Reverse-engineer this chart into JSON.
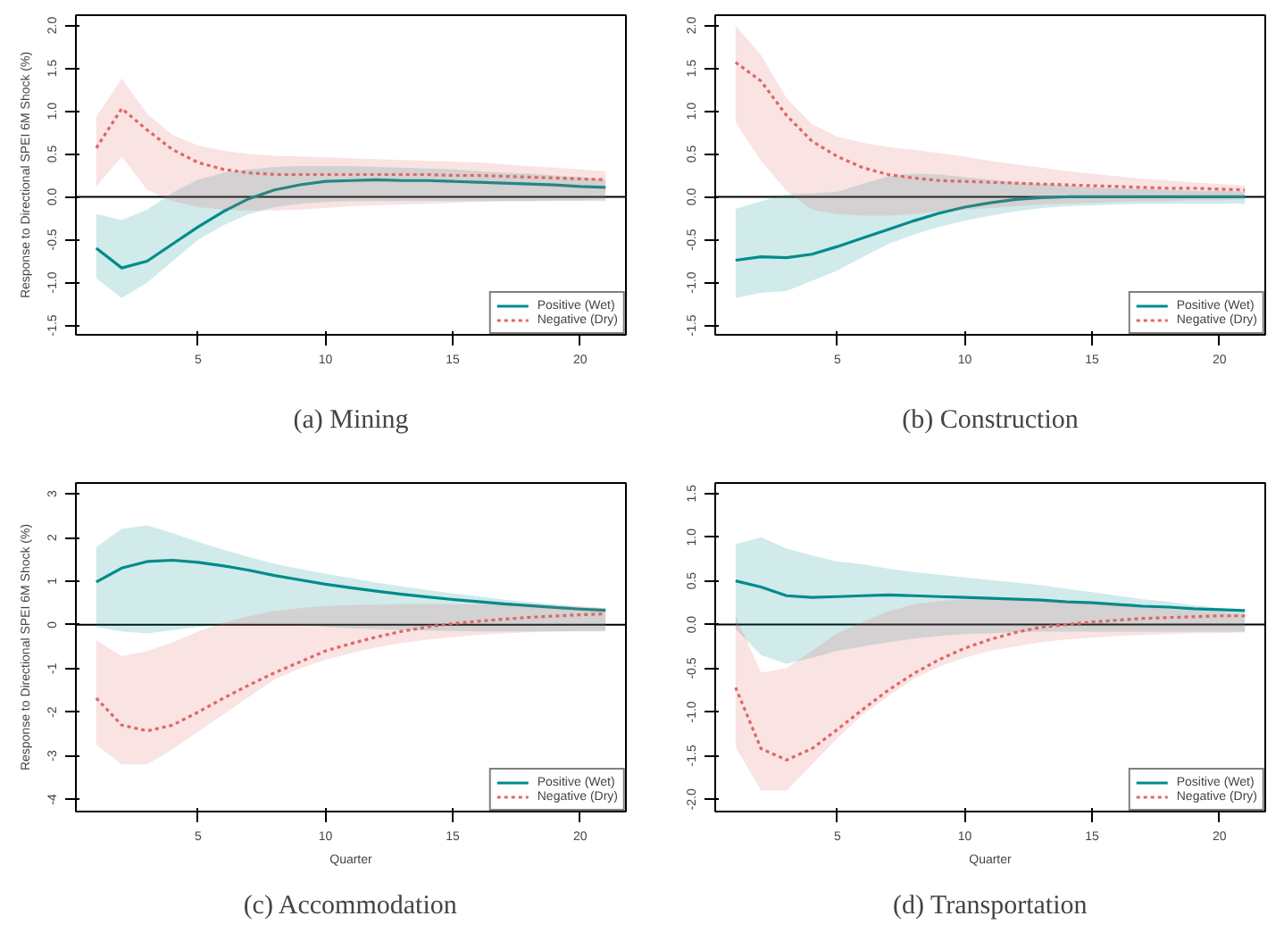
{
  "chart_data": [
    {
      "type": "line",
      "title": "(a) Mining",
      "ylabel": "Response to Directional SPEI 6M Shock (%)",
      "x": [
        1,
        2,
        3,
        4,
        5,
        6,
        7,
        8,
        9,
        10,
        11,
        12,
        13,
        14,
        15,
        16,
        17,
        18,
        19,
        20,
        21
      ],
      "xlim": [
        0.2,
        21.8
      ],
      "xticks": [
        5,
        10,
        15,
        20
      ],
      "ylim": [
        -1.61,
        2.12
      ],
      "yticks": [
        -1.5,
        {
          "value": -1.0,
          "label": "-1.0"
        },
        -0.5,
        {
          "value": 0.0,
          "label": "0.0"
        },
        0.5,
        {
          "value": 1.0,
          "label": "1.0"
        },
        1.5,
        {
          "value": 2.0,
          "label": "2.0"
        }
      ],
      "grid": false,
      "legend": "bottom right",
      "ref_lines": [
        {
          "axis": "y",
          "value": 0,
          "color": "#000000"
        }
      ],
      "series": [
        {
          "name": "Positive (Wet)",
          "color": "#008b8b",
          "line_style": "solid",
          "values": [
            -0.6,
            -0.83,
            -0.75,
            -0.55,
            -0.35,
            -0.17,
            -0.02,
            0.08,
            0.14,
            0.18,
            0.19,
            0.2,
            0.19,
            0.19,
            0.18,
            0.17,
            0.16,
            0.15,
            0.14,
            0.12,
            0.11
          ],
          "lower": [
            -0.95,
            -1.18,
            -1.0,
            -0.75,
            -0.5,
            -0.33,
            -0.2,
            -0.12,
            -0.08,
            -0.06,
            -0.05,
            -0.05,
            -0.05,
            -0.05,
            -0.05,
            -0.05,
            -0.05,
            -0.05,
            -0.05,
            -0.05,
            -0.05
          ],
          "upper": [
            -0.2,
            -0.27,
            -0.15,
            0.05,
            0.2,
            0.28,
            0.32,
            0.35,
            0.36,
            0.36,
            0.36,
            0.35,
            0.34,
            0.33,
            0.32,
            0.3,
            0.28,
            0.27,
            0.25,
            0.23,
            0.2
          ]
        },
        {
          "name": "Negative (Dry)",
          "color": "#e06666",
          "line_style": "dotted",
          "values": [
            0.57,
            1.03,
            0.78,
            0.55,
            0.4,
            0.32,
            0.28,
            0.26,
            0.26,
            0.26,
            0.26,
            0.26,
            0.26,
            0.26,
            0.25,
            0.25,
            0.24,
            0.23,
            0.22,
            0.21,
            0.2
          ],
          "lower": [
            0.12,
            0.47,
            0.08,
            -0.05,
            -0.12,
            -0.15,
            -0.16,
            -0.16,
            -0.15,
            -0.13,
            -0.11,
            -0.1,
            -0.09,
            -0.08,
            -0.07,
            -0.06,
            -0.05,
            -0.05,
            -0.04,
            -0.04,
            -0.03
          ],
          "upper": [
            0.93,
            1.38,
            0.97,
            0.72,
            0.6,
            0.54,
            0.5,
            0.48,
            0.47,
            0.46,
            0.45,
            0.44,
            0.43,
            0.42,
            0.41,
            0.4,
            0.38,
            0.36,
            0.34,
            0.32,
            0.3
          ]
        }
      ]
    },
    {
      "type": "line",
      "title": "(b) Construction",
      "x": [
        1,
        2,
        3,
        4,
        5,
        6,
        7,
        8,
        9,
        10,
        11,
        12,
        13,
        14,
        15,
        16,
        17,
        18,
        19,
        20,
        21
      ],
      "xlim": [
        0.2,
        21.8
      ],
      "xticks": [
        5,
        10,
        15,
        20
      ],
      "ylim": [
        -1.61,
        2.12
      ],
      "yticks": [
        -1.5,
        {
          "value": -1.0,
          "label": "-1.0"
        },
        -0.5,
        {
          "value": 0.0,
          "label": "0.0"
        },
        0.5,
        {
          "value": 1.0,
          "label": "1.0"
        },
        1.5,
        {
          "value": 2.0,
          "label": "2.0"
        }
      ],
      "grid": false,
      "legend": "bottom right",
      "ref_lines": [
        {
          "axis": "y",
          "value": 0,
          "color": "#000000"
        }
      ],
      "series": [
        {
          "name": "Positive (Wet)",
          "color": "#008b8b",
          "line_style": "solid",
          "values": [
            -0.74,
            -0.7,
            -0.71,
            -0.67,
            -0.58,
            -0.48,
            -0.38,
            -0.28,
            -0.19,
            -0.12,
            -0.07,
            -0.03,
            -0.01,
            0.0,
            0.0,
            0.0,
            0.0,
            0.0,
            0.0,
            0.0,
            0.0
          ],
          "lower": [
            -1.18,
            -1.12,
            -1.1,
            -0.98,
            -0.86,
            -0.7,
            -0.55,
            -0.44,
            -0.35,
            -0.28,
            -0.22,
            -0.17,
            -0.13,
            -0.11,
            -0.1,
            -0.09,
            -0.08,
            -0.08,
            -0.08,
            -0.08,
            -0.08
          ],
          "upper": [
            -0.14,
            -0.05,
            0.03,
            0.04,
            0.06,
            0.15,
            0.24,
            0.27,
            0.26,
            0.23,
            0.2,
            0.17,
            0.15,
            0.13,
            0.11,
            0.1,
            0.09,
            0.08,
            0.07,
            0.07,
            0.06
          ]
        },
        {
          "name": "Negative (Dry)",
          "color": "#e06666",
          "line_style": "dotted",
          "values": [
            1.57,
            1.35,
            0.95,
            0.65,
            0.47,
            0.34,
            0.26,
            0.22,
            0.19,
            0.18,
            0.17,
            0.16,
            0.15,
            0.14,
            0.13,
            0.12,
            0.11,
            0.1,
            0.1,
            0.09,
            0.08
          ],
          "lower": [
            0.87,
            0.42,
            0.07,
            -0.15,
            -0.2,
            -0.22,
            -0.22,
            -0.2,
            -0.17,
            -0.15,
            -0.13,
            -0.11,
            -0.09,
            -0.08,
            -0.07,
            -0.06,
            -0.05,
            -0.05,
            -0.04,
            -0.04,
            -0.03
          ],
          "upper": [
            2.0,
            1.65,
            1.15,
            0.85,
            0.7,
            0.63,
            0.58,
            0.55,
            0.51,
            0.47,
            0.42,
            0.38,
            0.34,
            0.3,
            0.27,
            0.24,
            0.21,
            0.19,
            0.17,
            0.15,
            0.13
          ]
        }
      ]
    },
    {
      "type": "line",
      "title": "(c) Accommodation",
      "xlabel": "Quarter",
      "ylabel": "Response to Directional SPEI 6M Shock (%)",
      "x": [
        1,
        2,
        3,
        4,
        5,
        6,
        7,
        8,
        9,
        10,
        11,
        12,
        13,
        14,
        15,
        16,
        17,
        18,
        19,
        20,
        21
      ],
      "xlim": [
        0.2,
        21.8
      ],
      "xticks": [
        5,
        10,
        15,
        20
      ],
      "ylim": [
        -4.28,
        3.25
      ],
      "yticks": [
        -4,
        -3,
        -2,
        -1,
        0,
        1,
        2,
        3
      ],
      "grid": false,
      "legend": "bottom right",
      "ref_lines": [
        {
          "axis": "y",
          "value": 0,
          "color": "#000000"
        }
      ],
      "series": [
        {
          "name": "Positive (Wet)",
          "color": "#008b8b",
          "line_style": "solid",
          "values": [
            0.98,
            1.3,
            1.45,
            1.48,
            1.43,
            1.35,
            1.25,
            1.13,
            1.03,
            0.93,
            0.85,
            0.77,
            0.7,
            0.64,
            0.58,
            0.53,
            0.48,
            0.44,
            0.4,
            0.36,
            0.33
          ],
          "lower": [
            -0.05,
            -0.15,
            -0.2,
            -0.12,
            -0.05,
            0.0,
            0.0,
            0.0,
            0.0,
            -0.05,
            -0.08,
            -0.1,
            -0.12,
            -0.13,
            -0.14,
            -0.15,
            -0.15,
            -0.15,
            -0.15,
            -0.15,
            -0.15
          ],
          "upper": [
            1.78,
            2.2,
            2.28,
            2.1,
            1.9,
            1.72,
            1.55,
            1.4,
            1.28,
            1.17,
            1.07,
            0.97,
            0.88,
            0.8,
            0.72,
            0.65,
            0.58,
            0.52,
            0.47,
            0.42,
            0.38
          ]
        },
        {
          "name": "Negative (Dry)",
          "color": "#e06666",
          "line_style": "dotted",
          "values": [
            -1.68,
            -2.3,
            -2.43,
            -2.3,
            -2.0,
            -1.68,
            -1.38,
            -1.1,
            -0.85,
            -0.6,
            -0.43,
            -0.28,
            -0.15,
            -0.05,
            0.03,
            0.08,
            0.13,
            0.17,
            0.2,
            0.23,
            0.25
          ],
          "lower": [
            -2.75,
            -3.2,
            -3.2,
            -2.85,
            -2.45,
            -2.05,
            -1.65,
            -1.25,
            -1.0,
            -0.8,
            -0.65,
            -0.52,
            -0.42,
            -0.34,
            -0.28,
            -0.23,
            -0.2,
            -0.17,
            -0.15,
            -0.14,
            -0.13
          ],
          "upper": [
            -0.35,
            -0.72,
            -0.6,
            -0.4,
            -0.15,
            0.05,
            0.2,
            0.32,
            0.38,
            0.43,
            0.45,
            0.46,
            0.47,
            0.47,
            0.47,
            0.47,
            0.46,
            0.45,
            0.43,
            0.41,
            0.38
          ]
        }
      ]
    },
    {
      "type": "line",
      "title": "(d) Transportation",
      "xlabel": "Quarter",
      "x": [
        1,
        2,
        3,
        4,
        5,
        6,
        7,
        8,
        9,
        10,
        11,
        12,
        13,
        14,
        15,
        16,
        17,
        18,
        19,
        20,
        21
      ],
      "xlim": [
        0.2,
        21.8
      ],
      "xticks": [
        5,
        10,
        15,
        20
      ],
      "ylim": [
        -2.14,
        1.62
      ],
      "yticks": [
        {
          "value": -2.0,
          "label": "-2.0"
        },
        -1.5,
        {
          "value": -1.0,
          "label": "-1.0"
        },
        -0.5,
        {
          "value": 0.0,
          "label": "0.0"
        },
        0.5,
        {
          "value": 1.0,
          "label": "1.0"
        },
        1.5
      ],
      "grid": false,
      "legend": "bottom right",
      "ref_lines": [
        {
          "axis": "y",
          "value": 0,
          "color": "#000000"
        }
      ],
      "series": [
        {
          "name": "Positive (Wet)",
          "color": "#008b8b",
          "line_style": "solid",
          "values": [
            0.5,
            0.43,
            0.33,
            0.31,
            0.32,
            0.33,
            0.34,
            0.33,
            0.32,
            0.31,
            0.3,
            0.29,
            0.28,
            0.26,
            0.25,
            0.23,
            0.21,
            0.2,
            0.18,
            0.17,
            0.16
          ],
          "lower": [
            -0.05,
            -0.35,
            -0.45,
            -0.38,
            -0.3,
            -0.25,
            -0.2,
            -0.16,
            -0.13,
            -0.11,
            -0.1,
            -0.09,
            -0.08,
            -0.08,
            -0.08,
            -0.08,
            -0.08,
            -0.08,
            -0.08,
            -0.08,
            -0.08
          ],
          "upper": [
            0.92,
            1.0,
            0.87,
            0.79,
            0.72,
            0.69,
            0.64,
            0.6,
            0.57,
            0.54,
            0.51,
            0.48,
            0.45,
            0.41,
            0.37,
            0.33,
            0.29,
            0.26,
            0.22,
            0.19,
            0.16
          ]
        },
        {
          "name": "Negative (Dry)",
          "color": "#e06666",
          "line_style": "dotted",
          "values": [
            -0.72,
            -1.42,
            -1.55,
            -1.42,
            -1.2,
            -0.97,
            -0.75,
            -0.56,
            -0.4,
            -0.27,
            -0.17,
            -0.09,
            -0.03,
            0.0,
            0.03,
            0.05,
            0.07,
            0.08,
            0.09,
            0.1,
            0.1
          ],
          "lower": [
            -1.4,
            -1.9,
            -1.9,
            -1.6,
            -1.3,
            -1.03,
            -0.82,
            -0.62,
            -0.48,
            -0.38,
            -0.3,
            -0.25,
            -0.2,
            -0.17,
            -0.15,
            -0.13,
            -0.12,
            -0.11,
            -0.1,
            -0.1,
            -0.09
          ],
          "upper": [
            0.1,
            -0.55,
            -0.5,
            -0.3,
            -0.1,
            0.03,
            0.15,
            0.23,
            0.27,
            0.29,
            0.29,
            0.28,
            0.27,
            0.26,
            0.24,
            0.22,
            0.2,
            0.18,
            0.16,
            0.14,
            0.12
          ]
        }
      ]
    }
  ]
}
